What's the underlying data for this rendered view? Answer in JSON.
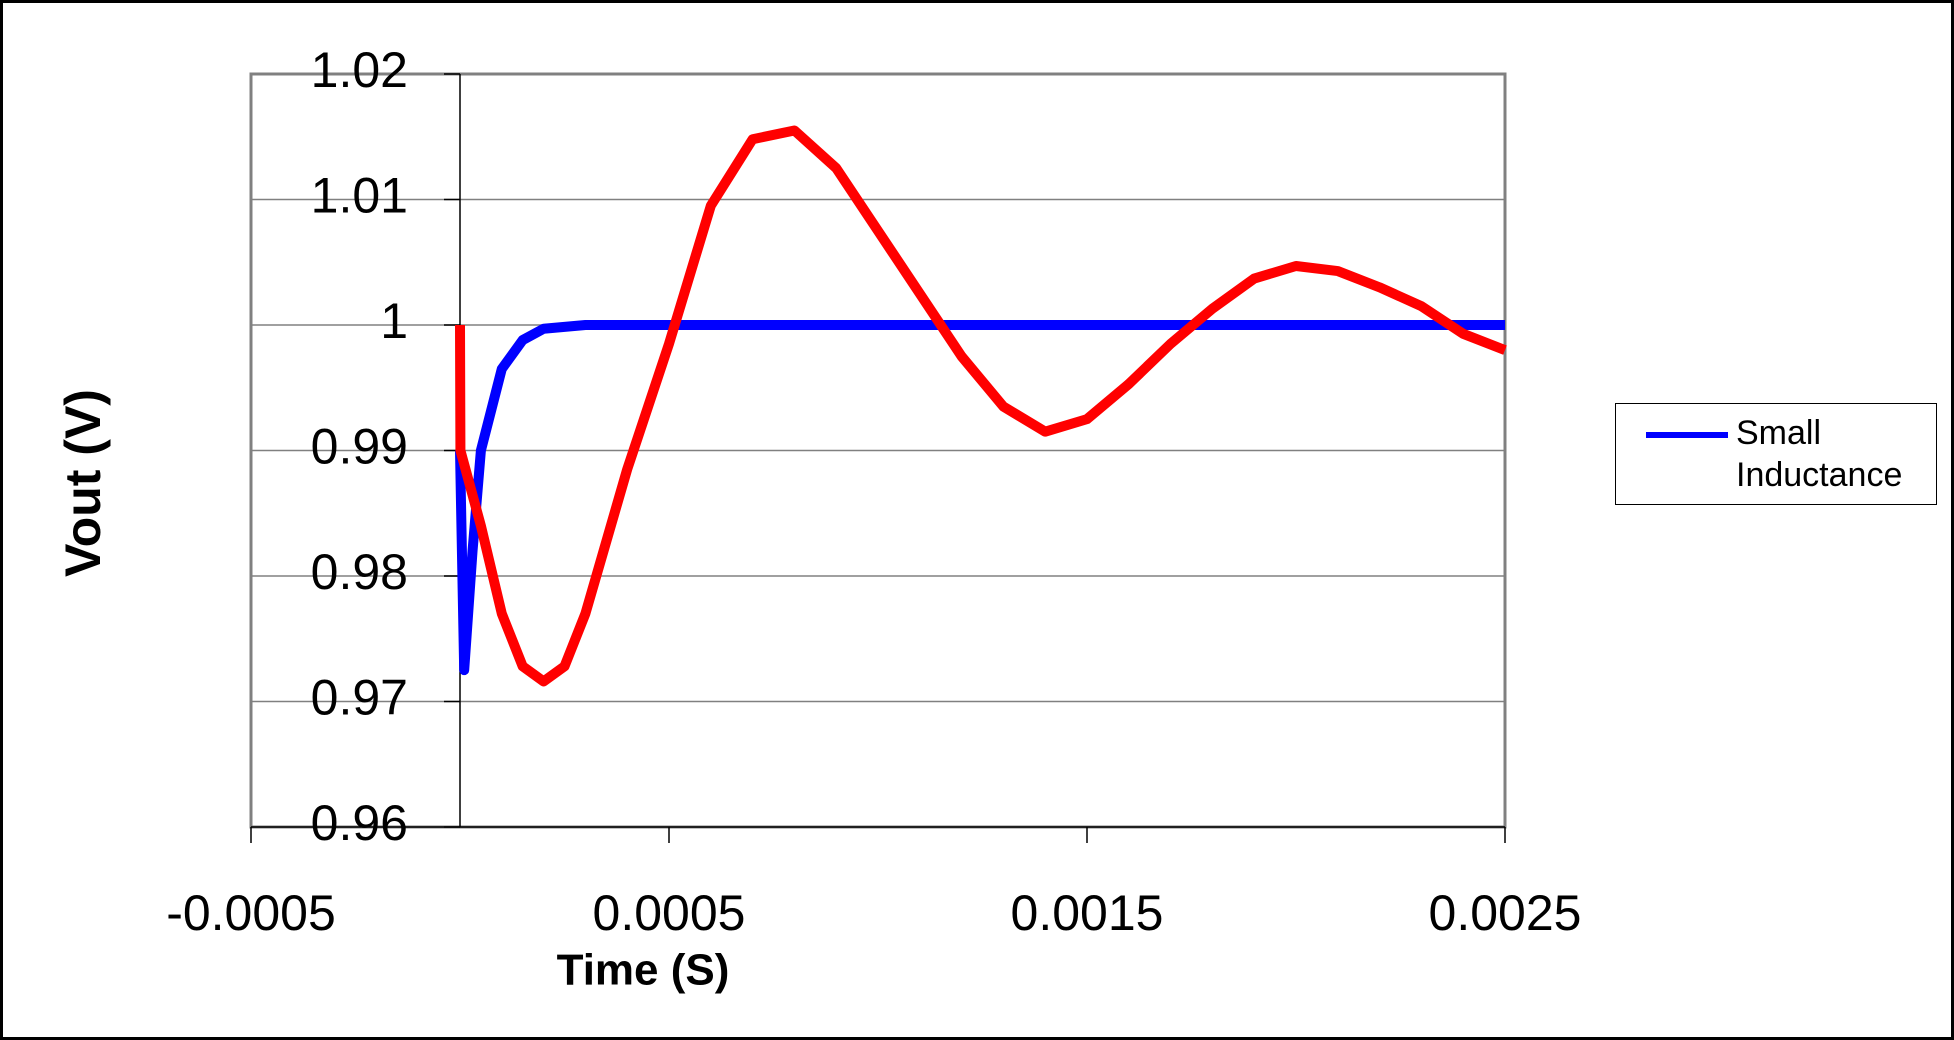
{
  "chart_data": {
    "type": "line",
    "xlabel": "Time (S)",
    "ylabel": "Vout (V)",
    "xlim": [
      -0.0005,
      0.0025
    ],
    "xticks": [
      -0.0005,
      0.0005,
      0.0015,
      0.0025
    ],
    "ylim": [
      0.96,
      1.02
    ],
    "yticks": [
      0.96,
      0.97,
      0.98,
      0.99,
      1,
      1.01,
      1.02
    ],
    "grid": true,
    "legend": "right",
    "series": [
      {
        "name": "Small Inductance",
        "color": "#0000ff",
        "x": [
          0,
          1e-05,
          3e-05,
          5e-05,
          0.0001,
          0.00015,
          0.0002,
          0.0003,
          0.0025
        ],
        "values": [
          0.99,
          0.9725,
          0.982,
          0.99,
          0.9965,
          0.9988,
          0.9997,
          1,
          1
        ]
      },
      {
        "color": "#ff0000",
        "x": [
          0,
          1e-06,
          5e-05,
          0.0001,
          0.00015,
          0.0002,
          0.00025,
          0.0003,
          0.0004,
          0.0005,
          0.0006,
          0.0007,
          0.0008,
          0.0009,
          0.001,
          0.0011,
          0.0012,
          0.0013,
          0.0014,
          0.0015,
          0.0016,
          0.0017,
          0.0018,
          0.0019,
          0.002,
          0.0021,
          0.0022,
          0.0023,
          0.0024,
          0.0025
        ],
        "values": [
          1,
          0.99,
          0.984,
          0.977,
          0.9728,
          0.9716,
          0.9728,
          0.977,
          0.9885,
          0.9985,
          1.0095,
          1.0148,
          1.0155,
          1.0125,
          1.0075,
          1.0025,
          0.9975,
          0.9935,
          0.9915,
          0.9925,
          0.9953,
          0.9985,
          1.0013,
          1.0037,
          1.0047,
          1.0043,
          1.003,
          1.0015,
          0.9993,
          0.998
        ]
      }
    ]
  }
}
